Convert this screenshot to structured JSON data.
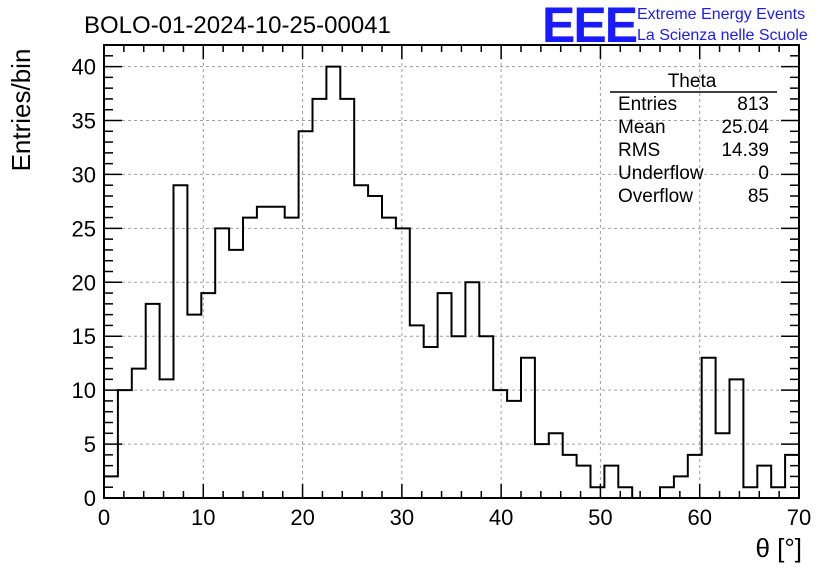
{
  "header": {
    "title": "BOLO-01-2024-10-25-00041",
    "logo_mark": "EEE",
    "logo_line1": "Extreme Energy Events",
    "logo_line2": "La Scienza nelle Scuole"
  },
  "stats": {
    "name": "Theta",
    "rows": [
      {
        "label": "Entries",
        "value": "813"
      },
      {
        "label": "Mean",
        "value": "25.04"
      },
      {
        "label": "RMS",
        "value": "14.39"
      },
      {
        "label": "Underflow",
        "value": "0"
      },
      {
        "label": "Overflow",
        "value": "85"
      }
    ]
  },
  "colors": {
    "line": "#000000",
    "grid": "#a0a0a0",
    "logo": "#1a1aff"
  },
  "chart_data": {
    "type": "bar",
    "style": "step-histogram",
    "xlabel": "θ [°]",
    "ylabel": "Entries/bin",
    "xlim": [
      0,
      70
    ],
    "ylim": [
      0,
      42
    ],
    "grid": true,
    "xticks": [
      0,
      10,
      20,
      30,
      40,
      50,
      60,
      70
    ],
    "yticks": [
      0,
      5,
      10,
      15,
      20,
      25,
      30,
      35,
      40
    ],
    "bin_edges": [
      0,
      1.4,
      2.8,
      4.2,
      5.6,
      7.0,
      8.4,
      9.8,
      11.2,
      12.6,
      14.0,
      15.4,
      16.8,
      18.2,
      19.6,
      21.0,
      22.4,
      23.8,
      25.2,
      26.6,
      28.0,
      29.4,
      30.8,
      32.2,
      33.6,
      35.0,
      36.4,
      37.8,
      39.2,
      40.6,
      42.0,
      43.4,
      44.8,
      46.2,
      47.6,
      49.0,
      50.4,
      51.8,
      53.2,
      54.6,
      56.0,
      57.4,
      58.8,
      60.2,
      61.6,
      63.0,
      64.4,
      65.8,
      67.2,
      68.6
    ],
    "values": [
      2,
      10,
      12,
      18,
      11,
      29,
      17,
      19,
      25,
      23,
      26,
      27,
      27,
      26,
      34,
      37,
      40,
      37,
      29,
      28,
      26,
      25,
      16,
      14,
      19,
      15,
      20,
      15,
      10,
      9,
      13,
      5,
      6,
      4,
      3,
      1,
      3,
      1,
      0,
      0,
      1,
      2,
      4,
      13,
      6,
      11,
      1,
      3,
      1,
      4
    ]
  }
}
